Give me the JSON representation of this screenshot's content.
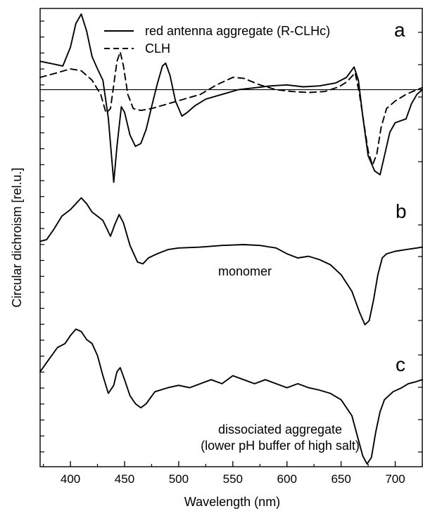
{
  "chart_data": {
    "type": "line",
    "xlabel": "Wavelength (nm)",
    "ylabel": "Circular dichroism [rel.u.]",
    "xlim": [
      372,
      725
    ],
    "x_ticks": [
      400,
      450,
      500,
      550,
      600,
      650,
      700
    ],
    "grid": false,
    "legend": {
      "placement": "top-center",
      "entries": [
        {
          "label": "red antenna aggregate (R-CLHc)",
          "style": "solid"
        },
        {
          "label": "CLH",
          "style": "dashed"
        }
      ]
    },
    "panels": [
      {
        "label": "a",
        "ylim": [
          -1.0,
          0.8
        ],
        "zero_line": true,
        "series": [
          {
            "name": "red antenna aggregate (R-CLHc)",
            "style": "solid",
            "points": [
              [
                372,
                0.3
              ],
              [
                385,
                0.27
              ],
              [
                393,
                0.25
              ],
              [
                400,
                0.45
              ],
              [
                405,
                0.7
              ],
              [
                410,
                0.8
              ],
              [
                415,
                0.62
              ],
              [
                420,
                0.35
              ],
              [
                425,
                0.22
              ],
              [
                430,
                0.1
              ],
              [
                435,
                -0.3
              ],
              [
                440,
                -0.98
              ],
              [
                443,
                -0.6
              ],
              [
                447,
                -0.18
              ],
              [
                450,
                -0.24
              ],
              [
                455,
                -0.48
              ],
              [
                460,
                -0.6
              ],
              [
                465,
                -0.57
              ],
              [
                470,
                -0.42
              ],
              [
                475,
                -0.18
              ],
              [
                480,
                0.05
              ],
              [
                485,
                0.25
              ],
              [
                488,
                0.28
              ],
              [
                492,
                0.15
              ],
              [
                497,
                -0.12
              ],
              [
                503,
                -0.28
              ],
              [
                508,
                -0.24
              ],
              [
                515,
                -0.17
              ],
              [
                525,
                -0.1
              ],
              [
                540,
                -0.05
              ],
              [
                555,
                0.0
              ],
              [
                570,
                0.02
              ],
              [
                585,
                0.04
              ],
              [
                600,
                0.05
              ],
              [
                615,
                0.03
              ],
              [
                630,
                0.04
              ],
              [
                645,
                0.07
              ],
              [
                655,
                0.13
              ],
              [
                662,
                0.24
              ],
              [
                666,
                0.1
              ],
              [
                670,
                -0.28
              ],
              [
                675,
                -0.7
              ],
              [
                681,
                -0.86
              ],
              [
                686,
                -0.9
              ],
              [
                690,
                -0.7
              ],
              [
                695,
                -0.45
              ],
              [
                700,
                -0.35
              ],
              [
                705,
                -0.33
              ],
              [
                710,
                -0.31
              ],
              [
                715,
                -0.15
              ],
              [
                720,
                -0.05
              ],
              [
                725,
                0.0
              ]
            ]
          },
          {
            "name": "CLH",
            "style": "dashed",
            "points": [
              [
                372,
                0.13
              ],
              [
                385,
                0.17
              ],
              [
                400,
                0.22
              ],
              [
                410,
                0.2
              ],
              [
                420,
                0.1
              ],
              [
                428,
                -0.05
              ],
              [
                433,
                -0.25
              ],
              [
                437,
                -0.2
              ],
              [
                440,
                0.05
              ],
              [
                443,
                0.3
              ],
              [
                446,
                0.4
              ],
              [
                449,
                0.25
              ],
              [
                453,
                -0.05
              ],
              [
                458,
                -0.2
              ],
              [
                465,
                -0.22
              ],
              [
                475,
                -0.2
              ],
              [
                490,
                -0.15
              ],
              [
                505,
                -0.1
              ],
              [
                520,
                -0.05
              ],
              [
                535,
                0.05
              ],
              [
                550,
                0.13
              ],
              [
                560,
                0.12
              ],
              [
                575,
                0.05
              ],
              [
                590,
                0.0
              ],
              [
                605,
                -0.02
              ],
              [
                620,
                -0.03
              ],
              [
                635,
                -0.02
              ],
              [
                648,
                0.03
              ],
              [
                655,
                0.08
              ],
              [
                660,
                0.14
              ],
              [
                663,
                0.18
              ],
              [
                667,
                -0.05
              ],
              [
                671,
                -0.35
              ],
              [
                675,
                -0.65
              ],
              [
                679,
                -0.8
              ],
              [
                683,
                -0.68
              ],
              [
                687,
                -0.4
              ],
              [
                692,
                -0.2
              ],
              [
                700,
                -0.12
              ],
              [
                710,
                -0.05
              ],
              [
                720,
                0.0
              ],
              [
                725,
                0.02
              ]
            ]
          }
        ]
      },
      {
        "label": "b",
        "annotation": "monomer",
        "ylim": [
          -1.0,
          0.6
        ],
        "series": [
          {
            "name": "monomer",
            "style": "solid",
            "points": [
              [
                372,
                0.0
              ],
              [
                378,
                0.02
              ],
              [
                385,
                0.15
              ],
              [
                392,
                0.3
              ],
              [
                400,
                0.38
              ],
              [
                405,
                0.45
              ],
              [
                410,
                0.52
              ],
              [
                415,
                0.45
              ],
              [
                420,
                0.35
              ],
              [
                425,
                0.3
              ],
              [
                430,
                0.25
              ],
              [
                437,
                0.06
              ],
              [
                441,
                0.2
              ],
              [
                445,
                0.32
              ],
              [
                449,
                0.22
              ],
              [
                455,
                -0.05
              ],
              [
                462,
                -0.25
              ],
              [
                467,
                -0.27
              ],
              [
                472,
                -0.2
              ],
              [
                480,
                -0.15
              ],
              [
                490,
                -0.1
              ],
              [
                500,
                -0.08
              ],
              [
                520,
                -0.07
              ],
              [
                540,
                -0.05
              ],
              [
                560,
                -0.04
              ],
              [
                575,
                -0.05
              ],
              [
                590,
                -0.08
              ],
              [
                600,
                -0.15
              ],
              [
                610,
                -0.2
              ],
              [
                620,
                -0.18
              ],
              [
                630,
                -0.22
              ],
              [
                640,
                -0.28
              ],
              [
                650,
                -0.4
              ],
              [
                660,
                -0.6
              ],
              [
                667,
                -0.85
              ],
              [
                672,
                -1.0
              ],
              [
                676,
                -0.95
              ],
              [
                680,
                -0.7
              ],
              [
                684,
                -0.4
              ],
              [
                688,
                -0.2
              ],
              [
                692,
                -0.15
              ],
              [
                700,
                -0.12
              ],
              [
                710,
                -0.1
              ],
              [
                720,
                -0.08
              ],
              [
                725,
                -0.07
              ]
            ]
          }
        ]
      },
      {
        "label": "c",
        "annotation_lines": [
          "dissociated aggregate",
          "(lower pH buffer of high salt)"
        ],
        "ylim": [
          -1.0,
          0.7
        ],
        "series": [
          {
            "name": "dissociated aggregate",
            "style": "solid",
            "points": [
              [
                372,
                0.15
              ],
              [
                380,
                0.3
              ],
              [
                388,
                0.45
              ],
              [
                395,
                0.5
              ],
              [
                400,
                0.6
              ],
              [
                405,
                0.68
              ],
              [
                410,
                0.65
              ],
              [
                415,
                0.55
              ],
              [
                420,
                0.5
              ],
              [
                425,
                0.35
              ],
              [
                430,
                0.1
              ],
              [
                435,
                -0.12
              ],
              [
                440,
                -0.02
              ],
              [
                443,
                0.15
              ],
              [
                446,
                0.2
              ],
              [
                450,
                0.05
              ],
              [
                455,
                -0.15
              ],
              [
                460,
                -0.25
              ],
              [
                465,
                -0.3
              ],
              [
                470,
                -0.25
              ],
              [
                478,
                -0.1
              ],
              [
                490,
                -0.05
              ],
              [
                500,
                -0.02
              ],
              [
                510,
                -0.05
              ],
              [
                520,
                0.0
              ],
              [
                530,
                0.05
              ],
              [
                540,
                0.0
              ],
              [
                550,
                0.1
              ],
              [
                560,
                0.05
              ],
              [
                570,
                0.0
              ],
              [
                580,
                0.05
              ],
              [
                590,
                0.0
              ],
              [
                600,
                -0.05
              ],
              [
                610,
                0.0
              ],
              [
                620,
                -0.05
              ],
              [
                630,
                -0.08
              ],
              [
                640,
                -0.12
              ],
              [
                650,
                -0.2
              ],
              [
                660,
                -0.4
              ],
              [
                666,
                -0.7
              ],
              [
                670,
                -0.9
              ],
              [
                674,
                -1.0
              ],
              [
                678,
                -0.92
              ],
              [
                682,
                -0.6
              ],
              [
                686,
                -0.35
              ],
              [
                690,
                -0.2
              ],
              [
                698,
                -0.1
              ],
              [
                706,
                -0.05
              ],
              [
                712,
                0.0
              ],
              [
                718,
                0.02
              ],
              [
                725,
                0.05
              ]
            ]
          }
        ]
      }
    ]
  }
}
